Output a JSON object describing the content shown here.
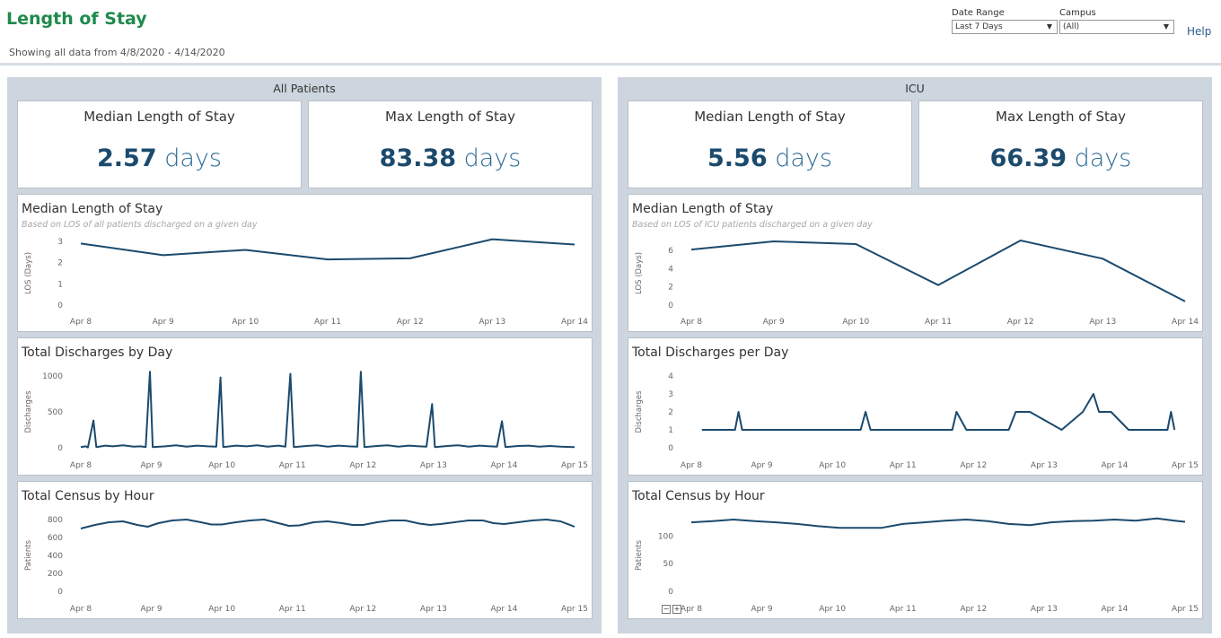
{
  "header": {
    "title": "Length of Stay",
    "subtitle": "Showing all data from 4/8/2020 - 4/14/2020",
    "filters": [
      {
        "label": "Date Range",
        "value": "Last 7 Days"
      },
      {
        "label": "Campus",
        "value": "(All)"
      }
    ],
    "help": "Help"
  },
  "colors": {
    "line": "#1b4a6d",
    "title": "#1f8a4c",
    "panel": "#cdd5de"
  },
  "panels": [
    {
      "title": "All Patients",
      "kpis": [
        {
          "label": "Median Length of Stay",
          "value": "2.57",
          "unit": "days"
        },
        {
          "label": "Max Length of Stay",
          "value": "83.38",
          "unit": "days"
        }
      ]
    },
    {
      "title": "ICU",
      "kpis": [
        {
          "label": "Median Length of Stay",
          "value": "5.56",
          "unit": "days"
        },
        {
          "label": "Max Length of Stay",
          "value": "66.39",
          "unit": "days"
        }
      ]
    }
  ],
  "chart_data": [
    {
      "id": "ap-median",
      "type": "line",
      "title": "Median Length of Stay",
      "subtitle": "Based on LOS of all patients discharged on a given day",
      "ylabel": "LOS (Days)",
      "ylim": [
        0,
        3
      ],
      "yticks": [
        0,
        1,
        2,
        3
      ],
      "x": [
        "Apr 8",
        "Apr 9",
        "Apr 10",
        "Apr 11",
        "Apr 12",
        "Apr 13",
        "Apr 14"
      ],
      "values": [
        2.9,
        2.35,
        2.6,
        2.15,
        2.2,
        3.1,
        2.85
      ]
    },
    {
      "id": "ap-discharges",
      "type": "line",
      "title": "Total Discharges by Day",
      "ylabel": "Discharges",
      "ylim": [
        0,
        1000
      ],
      "yticks": [
        0,
        500,
        1000
      ],
      "xticks": [
        "Apr 8",
        "Apr 9",
        "Apr 10",
        "Apr 11",
        "Apr 12",
        "Apr 13",
        "Apr 14",
        "Apr 15"
      ],
      "xrange": [
        0,
        7
      ],
      "points": [
        [
          0,
          10
        ],
        [
          0.07,
          20
        ],
        [
          0.1,
          5
        ],
        [
          0.18,
          380
        ],
        [
          0.22,
          10
        ],
        [
          0.35,
          30
        ],
        [
          0.45,
          20
        ],
        [
          0.6,
          35
        ],
        [
          0.75,
          15
        ],
        [
          0.85,
          20
        ],
        [
          0.92,
          10
        ],
        [
          0.98,
          1060
        ],
        [
          1.02,
          10
        ],
        [
          1.2,
          20
        ],
        [
          1.35,
          35
        ],
        [
          1.5,
          15
        ],
        [
          1.65,
          30
        ],
        [
          1.8,
          20
        ],
        [
          1.92,
          15
        ],
        [
          1.98,
          980
        ],
        [
          2.02,
          10
        ],
        [
          2.2,
          30
        ],
        [
          2.35,
          20
        ],
        [
          2.5,
          35
        ],
        [
          2.65,
          15
        ],
        [
          2.8,
          30
        ],
        [
          2.9,
          15
        ],
        [
          2.97,
          1030
        ],
        [
          3.02,
          10
        ],
        [
          3.2,
          25
        ],
        [
          3.35,
          35
        ],
        [
          3.5,
          15
        ],
        [
          3.65,
          30
        ],
        [
          3.8,
          20
        ],
        [
          3.92,
          15
        ],
        [
          3.97,
          1060
        ],
        [
          4.02,
          10
        ],
        [
          4.2,
          25
        ],
        [
          4.35,
          35
        ],
        [
          4.5,
          15
        ],
        [
          4.65,
          30
        ],
        [
          4.8,
          20
        ],
        [
          4.9,
          15
        ],
        [
          4.98,
          610
        ],
        [
          5.02,
          10
        ],
        [
          5.2,
          25
        ],
        [
          5.35,
          35
        ],
        [
          5.5,
          15
        ],
        [
          5.65,
          30
        ],
        [
          5.8,
          20
        ],
        [
          5.9,
          15
        ],
        [
          5.97,
          370
        ],
        [
          6.02,
          10
        ],
        [
          6.2,
          25
        ],
        [
          6.35,
          30
        ],
        [
          6.5,
          15
        ],
        [
          6.65,
          25
        ],
        [
          6.8,
          15
        ],
        [
          7,
          10
        ]
      ]
    },
    {
      "id": "ap-census",
      "type": "line",
      "title": "Total Census by Hour",
      "ylabel": "Patients",
      "ylim": [
        0,
        800
      ],
      "yticks": [
        0,
        200,
        400,
        600,
        800
      ],
      "xticks": [
        "Apr 8",
        "Apr 9",
        "Apr 10",
        "Apr 11",
        "Apr 12",
        "Apr 13",
        "Apr 14",
        "Apr 15"
      ],
      "xrange": [
        0,
        7
      ],
      "points": [
        [
          0,
          700
        ],
        [
          0.2,
          740
        ],
        [
          0.4,
          770
        ],
        [
          0.6,
          780
        ],
        [
          0.8,
          740
        ],
        [
          0.95,
          720
        ],
        [
          1.1,
          760
        ],
        [
          1.3,
          790
        ],
        [
          1.5,
          800
        ],
        [
          1.7,
          770
        ],
        [
          1.85,
          745
        ],
        [
          2.0,
          745
        ],
        [
          2.2,
          770
        ],
        [
          2.4,
          790
        ],
        [
          2.6,
          800
        ],
        [
          2.8,
          760
        ],
        [
          2.95,
          730
        ],
        [
          3.1,
          735
        ],
        [
          3.3,
          770
        ],
        [
          3.5,
          780
        ],
        [
          3.7,
          760
        ],
        [
          3.85,
          740
        ],
        [
          4.0,
          740
        ],
        [
          4.2,
          770
        ],
        [
          4.4,
          790
        ],
        [
          4.6,
          790
        ],
        [
          4.8,
          755
        ],
        [
          4.95,
          740
        ],
        [
          5.1,
          750
        ],
        [
          5.3,
          770
        ],
        [
          5.5,
          790
        ],
        [
          5.7,
          790
        ],
        [
          5.85,
          760
        ],
        [
          6.0,
          750
        ],
        [
          6.2,
          770
        ],
        [
          6.4,
          790
        ],
        [
          6.6,
          800
        ],
        [
          6.8,
          780
        ],
        [
          7,
          720
        ]
      ]
    },
    {
      "id": "icu-median",
      "type": "line",
      "title": "Median Length of Stay",
      "subtitle": "Based on LOS of ICU patients discharged on a given day",
      "ylabel": "LOS (Days)",
      "ylim": [
        0,
        7
      ],
      "yticks": [
        0,
        2,
        4,
        6
      ],
      "x": [
        "Apr 8",
        "Apr 9",
        "Apr 10",
        "Apr 11",
        "Apr 12",
        "Apr 13",
        "Apr 14"
      ],
      "values": [
        6.1,
        7.0,
        6.7,
        2.2,
        7.1,
        5.1,
        0.4
      ]
    },
    {
      "id": "icu-discharges",
      "type": "line",
      "title": "Total Discharges per Day",
      "ylabel": "Discharges",
      "ylim": [
        0,
        4
      ],
      "yticks": [
        0,
        1,
        2,
        3,
        4
      ],
      "xticks": [
        "Apr 8",
        "Apr 9",
        "Apr 10",
        "Apr 11",
        "Apr 12",
        "Apr 13",
        "Apr 14",
        "Apr 15"
      ],
      "xrange": [
        0,
        7
      ],
      "points": [
        [
          0.15,
          1
        ],
        [
          0.62,
          1
        ],
        [
          0.67,
          2
        ],
        [
          0.72,
          1
        ],
        [
          2.4,
          1
        ],
        [
          2.47,
          2
        ],
        [
          2.54,
          1
        ],
        [
          3.7,
          1
        ],
        [
          3.76,
          2
        ],
        [
          3.9,
          1
        ],
        [
          4.5,
          1
        ],
        [
          4.6,
          2
        ],
        [
          4.8,
          2
        ],
        [
          5.25,
          1
        ],
        [
          5.55,
          2
        ],
        [
          5.7,
          3
        ],
        [
          5.78,
          2
        ],
        [
          5.95,
          2
        ],
        [
          6.2,
          1
        ],
        [
          6.75,
          1
        ],
        [
          6.8,
          2
        ],
        [
          6.85,
          1
        ]
      ]
    },
    {
      "id": "icu-census",
      "type": "line",
      "title": "Total Census by Hour",
      "ylabel": "Patients",
      "ylim": [
        0,
        130
      ],
      "yticks": [
        0,
        50,
        100
      ],
      "xticks": [
        "Apr 8",
        "Apr 9",
        "Apr 10",
        "Apr 11",
        "Apr 12",
        "Apr 13",
        "Apr 14",
        "Apr 15"
      ],
      "xrange": [
        0,
        7
      ],
      "points": [
        [
          0,
          125
        ],
        [
          0.3,
          127
        ],
        [
          0.6,
          130
        ],
        [
          0.9,
          127
        ],
        [
          1.2,
          125
        ],
        [
          1.5,
          122
        ],
        [
          1.8,
          118
        ],
        [
          2.1,
          115
        ],
        [
          2.4,
          115
        ],
        [
          2.7,
          115
        ],
        [
          3.0,
          122
        ],
        [
          3.3,
          125
        ],
        [
          3.6,
          128
        ],
        [
          3.9,
          130
        ],
        [
          4.2,
          127
        ],
        [
          4.5,
          122
        ],
        [
          4.8,
          120
        ],
        [
          5.1,
          125
        ],
        [
          5.4,
          127
        ],
        [
          5.7,
          128
        ],
        [
          6.0,
          130
        ],
        [
          6.3,
          128
        ],
        [
          6.6,
          132
        ],
        [
          6.85,
          128
        ],
        [
          7,
          126
        ]
      ]
    }
  ]
}
